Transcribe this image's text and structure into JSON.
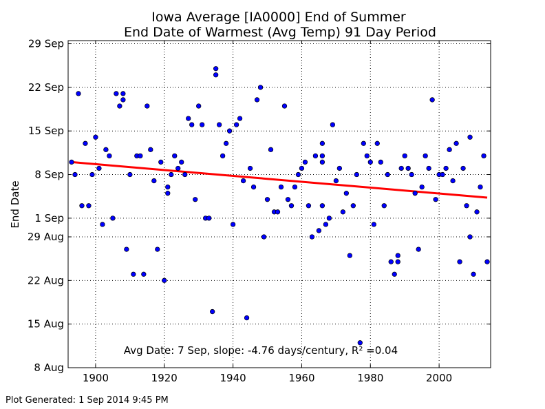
{
  "chart_data": {
    "type": "scatter",
    "title": "Iowa Average [IA0000] End of Summer",
    "subtitle": "End Date of Warmest (Avg Temp) 91 Day Period",
    "xlabel": "",
    "ylabel": "End Date",
    "xlim": [
      1892,
      2015
    ],
    "ylim_day_of_year": [
      220,
      272.5
    ],
    "x_ticks": [
      1900,
      1920,
      1940,
      1960,
      1980,
      2000
    ],
    "y_ticks": [
      {
        "label": "8 Aug",
        "day": 220
      },
      {
        "label": "15 Aug",
        "day": 227
      },
      {
        "label": "22 Aug",
        "day": 234
      },
      {
        "label": "29 Aug",
        "day": 241
      },
      {
        "label": "1 Sep",
        "day": 244
      },
      {
        "label": "8 Sep",
        "day": 251
      },
      {
        "label": "15 Sep",
        "day": 258
      },
      {
        "label": "22 Sep",
        "day": 265
      },
      {
        "label": "29 Sep",
        "day": 272
      }
    ],
    "grid": true,
    "marker_color": "#0000ff",
    "trend_color": "#ff0000",
    "annotation": "Avg Date: 7 Sep, slope: -4.76 days/century, R² =0.04",
    "trend_line": {
      "x": [
        1893,
        2014
      ],
      "y_day": [
        253.0,
        247.3
      ]
    },
    "series": [
      {
        "points": [
          [
            1893,
            253
          ],
          [
            1894,
            251
          ],
          [
            1895,
            264
          ],
          [
            1896,
            246
          ],
          [
            1897,
            256
          ],
          [
            1898,
            246
          ],
          [
            1899,
            251
          ],
          [
            1900,
            257
          ],
          [
            1901,
            252
          ],
          [
            1902,
            243
          ],
          [
            1903,
            255
          ],
          [
            1904,
            254
          ],
          [
            1905,
            244
          ],
          [
            1906,
            264
          ],
          [
            1907,
            262
          ],
          [
            1908,
            263
          ],
          [
            1908,
            264
          ],
          [
            1909,
            239
          ],
          [
            1910,
            251
          ],
          [
            1911,
            235
          ],
          [
            1912,
            254
          ],
          [
            1913,
            254
          ],
          [
            1914,
            235
          ],
          [
            1915,
            262
          ],
          [
            1916,
            255
          ],
          [
            1917,
            250
          ],
          [
            1918,
            239
          ],
          [
            1919,
            253
          ],
          [
            1920,
            234
          ],
          [
            1921,
            249
          ],
          [
            1921,
            248
          ],
          [
            1922,
            251
          ],
          [
            1923,
            254
          ],
          [
            1924,
            252
          ],
          [
            1925,
            253
          ],
          [
            1926,
            251
          ],
          [
            1927,
            260
          ],
          [
            1928,
            259
          ],
          [
            1929,
            247
          ],
          [
            1930,
            262
          ],
          [
            1931,
            259
          ],
          [
            1932,
            244
          ],
          [
            1933,
            244
          ],
          [
            1934,
            229
          ],
          [
            1935,
            268
          ],
          [
            1935,
            267
          ],
          [
            1936,
            259
          ],
          [
            1937,
            254
          ],
          [
            1938,
            256
          ],
          [
            1939,
            258
          ],
          [
            1940,
            243
          ],
          [
            1941,
            259
          ],
          [
            1942,
            260
          ],
          [
            1943,
            250
          ],
          [
            1944,
            228
          ],
          [
            1945,
            252
          ],
          [
            1946,
            249
          ],
          [
            1947,
            263
          ],
          [
            1948,
            265
          ],
          [
            1949,
            241
          ],
          [
            1950,
            247
          ],
          [
            1951,
            255
          ],
          [
            1952,
            245
          ],
          [
            1953,
            245
          ],
          [
            1954,
            249
          ],
          [
            1955,
            262
          ],
          [
            1956,
            247
          ],
          [
            1957,
            246
          ],
          [
            1958,
            249
          ],
          [
            1959,
            251
          ],
          [
            1960,
            252
          ],
          [
            1961,
            253
          ],
          [
            1962,
            246
          ],
          [
            1963,
            241
          ],
          [
            1964,
            254
          ],
          [
            1965,
            242
          ],
          [
            1966,
            256
          ],
          [
            1966,
            254
          ],
          [
            1966,
            253
          ],
          [
            1966,
            246
          ],
          [
            1967,
            243
          ],
          [
            1968,
            244
          ],
          [
            1969,
            259
          ],
          [
            1970,
            250
          ],
          [
            1971,
            252
          ],
          [
            1972,
            245
          ],
          [
            1973,
            248
          ],
          [
            1974,
            238
          ],
          [
            1975,
            246
          ],
          [
            1976,
            251
          ],
          [
            1977,
            224
          ],
          [
            1978,
            256
          ],
          [
            1979,
            254
          ],
          [
            1980,
            253
          ],
          [
            1981,
            243
          ],
          [
            1982,
            256
          ],
          [
            1983,
            253
          ],
          [
            1984,
            246
          ],
          [
            1985,
            251
          ],
          [
            1986,
            237
          ],
          [
            1987,
            235
          ],
          [
            1988,
            238
          ],
          [
            1988,
            237
          ],
          [
            1989,
            252
          ],
          [
            1990,
            254
          ],
          [
            1991,
            252
          ],
          [
            1992,
            251
          ],
          [
            1993,
            248
          ],
          [
            1994,
            239
          ],
          [
            1995,
            249
          ],
          [
            1996,
            254
          ],
          [
            1997,
            252
          ],
          [
            1998,
            263
          ],
          [
            1999,
            247
          ],
          [
            2000,
            251
          ],
          [
            2001,
            251
          ],
          [
            2002,
            252
          ],
          [
            2003,
            255
          ],
          [
            2004,
            250
          ],
          [
            2005,
            256
          ],
          [
            2006,
            237
          ],
          [
            2007,
            252
          ],
          [
            2008,
            246
          ],
          [
            2009,
            241
          ],
          [
            2009,
            257
          ],
          [
            2010,
            235
          ],
          [
            2011,
            245
          ],
          [
            2012,
            249
          ],
          [
            2013,
            254
          ],
          [
            2014,
            237
          ]
        ]
      }
    ]
  },
  "footer": "Plot Generated: 1 Sep 2014 9:45 PM"
}
